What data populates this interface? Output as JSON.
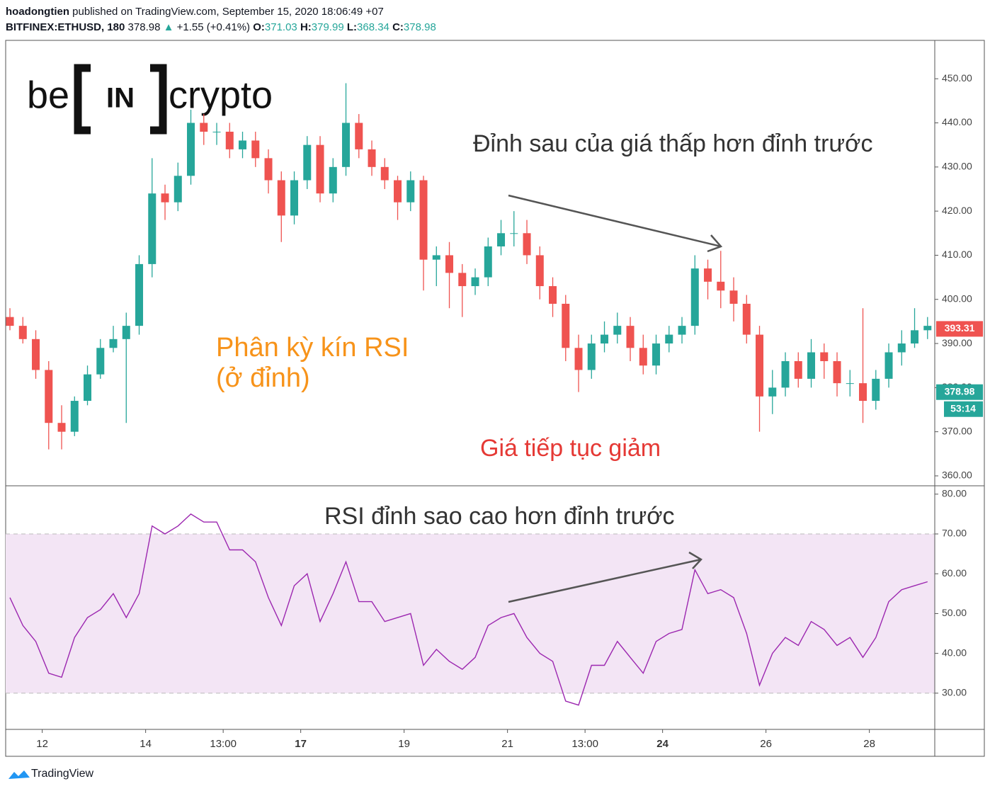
{
  "header": {
    "author": "hoadongtien",
    "published": "published on TradingView.com, September 15, 2020 18:06:49 +07",
    "symbol": "BITFINEX:ETHUSD, 180",
    "last": "378.98",
    "arrow": "▲",
    "change": "+1.55 (+0.41%)",
    "o_label": "O:",
    "o": "371.03",
    "h_label": "H:",
    "h": "379.99",
    "l_label": "L:",
    "l": "368.34",
    "c_label": "C:",
    "c": "378.98"
  },
  "logo": {
    "left": "be",
    "middle": "IN",
    "right": "crypto"
  },
  "footer": "TradingView",
  "chart_data": [
    {
      "type": "candlestick",
      "up_color": "#26a69a",
      "down_color": "#ef5350",
      "open": [
        396,
        394,
        391,
        384,
        372,
        370,
        377,
        383,
        389,
        391,
        394,
        408,
        424,
        422,
        428,
        440,
        438,
        438,
        434,
        436,
        432,
        427,
        419,
        427,
        435,
        424,
        430,
        440,
        434,
        430,
        427,
        422,
        427,
        409,
        410,
        406,
        403,
        405,
        412,
        415,
        415,
        410,
        403,
        399,
        389,
        384,
        390,
        392,
        394,
        389,
        385,
        390,
        392,
        394,
        407,
        404,
        402,
        399,
        392,
        378,
        380,
        386,
        382,
        388,
        386,
        381,
        381,
        377,
        382,
        388,
        390,
        393
      ],
      "high": [
        398,
        396,
        393,
        386,
        376,
        378,
        385,
        391,
        394,
        397,
        410,
        432,
        426,
        431,
        443,
        442,
        440,
        440,
        438,
        438,
        434,
        429,
        429,
        437,
        437,
        432,
        449,
        442,
        436,
        432,
        428,
        429,
        428,
        412,
        413,
        408,
        407,
        414,
        418,
        420,
        418,
        412,
        405,
        401,
        392,
        392,
        395,
        397,
        396,
        392,
        392,
        394,
        396,
        410,
        409,
        411,
        405,
        401,
        394,
        384,
        388,
        388,
        391,
        390,
        388,
        384,
        398,
        384,
        390,
        393,
        398,
        396
      ],
      "low": [
        393,
        390,
        382,
        366,
        366,
        369,
        376,
        382,
        388,
        372,
        392,
        405,
        418,
        420,
        426,
        435,
        435,
        432,
        432,
        430,
        424,
        413,
        417,
        425,
        422,
        422,
        428,
        432,
        428,
        425,
        418,
        420,
        402,
        403,
        398,
        396,
        401,
        403,
        410,
        412,
        408,
        400,
        396,
        386,
        379,
        382,
        388,
        390,
        386,
        383,
        383,
        388,
        390,
        392,
        400,
        398,
        395,
        390,
        370,
        374,
        378,
        380,
        380,
        382,
        378,
        378,
        372,
        375,
        380,
        385,
        389,
        391
      ],
      "close": [
        394,
        391,
        384,
        372,
        370,
        377,
        383,
        389,
        391,
        394,
        408,
        424,
        422,
        428,
        440,
        438,
        438,
        434,
        436,
        432,
        427,
        419,
        427,
        435,
        424,
        430,
        440,
        434,
        430,
        427,
        422,
        427,
        409,
        410,
        406,
        403,
        405,
        412,
        415,
        415,
        410,
        403,
        399,
        389,
        384,
        390,
        392,
        394,
        389,
        385,
        390,
        392,
        394,
        407,
        404,
        402,
        399,
        392,
        378,
        380,
        386,
        382,
        388,
        386,
        381,
        381,
        377,
        382,
        388,
        390,
        393,
        394
      ],
      "ylim": [
        357.75,
        458.7
      ],
      "yticks": [
        {
          "value": 360,
          "label": "360.00"
        },
        {
          "value": 370,
          "label": "370.00"
        },
        {
          "value": 380,
          "label": "380.00"
        },
        {
          "value": 390,
          "label": "390.00"
        },
        {
          "value": 400,
          "label": "400.00"
        },
        {
          "value": 410,
          "label": "410.00"
        },
        {
          "value": 420,
          "label": "420.00"
        },
        {
          "value": 430,
          "label": "430.00"
        },
        {
          "value": 440,
          "label": "440.00"
        },
        {
          "value": 450,
          "label": "450.00"
        }
      ],
      "xlim": [
        -0.33,
        71.56
      ],
      "xticks": [
        {
          "value": 2.5,
          "label": "12",
          "bold": false
        },
        {
          "value": 10.5,
          "label": "14",
          "bold": false
        },
        {
          "value": 16.5,
          "label": "13:00",
          "bold": false
        },
        {
          "value": 22.5,
          "label": "17",
          "bold": true
        },
        {
          "value": 30.5,
          "label": "19",
          "bold": false
        },
        {
          "value": 38.5,
          "label": "21",
          "bold": false
        },
        {
          "value": 44.5,
          "label": "13:00",
          "bold": false
        },
        {
          "value": 50.5,
          "label": "24",
          "bold": true
        },
        {
          "value": 58.5,
          "label": "26",
          "bold": false
        },
        {
          "value": 66.5,
          "label": "28",
          "bold": false
        }
      ],
      "price_tags": [
        {
          "value": 393.31,
          "color": "#ef5350"
        },
        {
          "value": 378.98,
          "color": "#26a69a"
        }
      ],
      "countdown": "53:14",
      "annotations": [
        {
          "text": "Đỉnh sau của giá thấp hơn đỉnh trước",
          "color": "#333333"
        },
        {
          "text": "Phân kỳ kín RSI",
          "color": "#f7931a"
        },
        {
          "text": "(ở đỉnh)",
          "color": "#f7931a"
        },
        {
          "text": "Giá tiếp tục giảm",
          "color": "#e53935"
        }
      ]
    },
    {
      "type": "line",
      "color": "#9c27b0",
      "band_fill": "#f3e5f5",
      "values": [
        54,
        47,
        43,
        35,
        34,
        44,
        49,
        51,
        55,
        49,
        55,
        72,
        70,
        72,
        75,
        73,
        73,
        66,
        66,
        63,
        54,
        47,
        57,
        60,
        48,
        55,
        63,
        53,
        53,
        48,
        49,
        50,
        37,
        41,
        38,
        36,
        39,
        47,
        49,
        50,
        44,
        40,
        38,
        28,
        27,
        37,
        37,
        43,
        39,
        35,
        43,
        45,
        46,
        61,
        55,
        56,
        54,
        45,
        32,
        40,
        44,
        42,
        48,
        46,
        42,
        44,
        39,
        44,
        53,
        56,
        57,
        58
      ],
      "ylim": [
        20.9,
        82.1
      ],
      "yticks": [
        {
          "value": 30,
          "label": "30.00"
        },
        {
          "value": 40,
          "label": "40.00"
        },
        {
          "value": 50,
          "label": "50.00"
        },
        {
          "value": 60,
          "label": "60.00"
        },
        {
          "value": 70,
          "label": "70.00"
        },
        {
          "value": 80,
          "label": "80.00"
        }
      ],
      "bands": [
        30,
        70
      ],
      "annotation": "RSI đỉnh sao cao hơn đỉnh trước"
    }
  ]
}
